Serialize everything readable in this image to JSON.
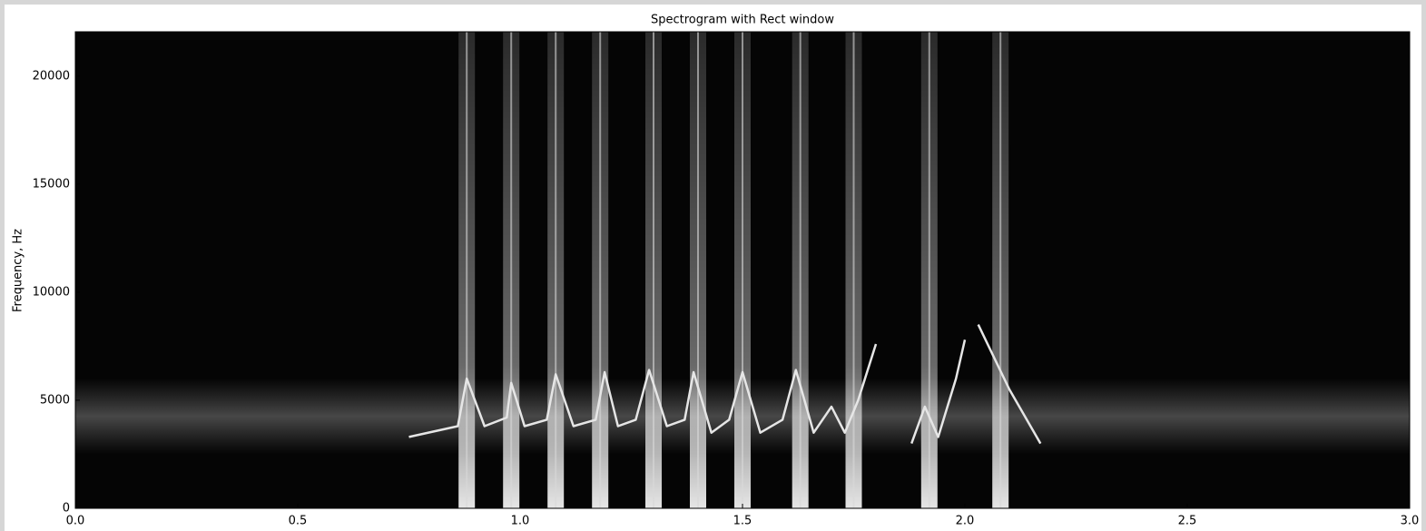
{
  "chart_data": {
    "type": "spectrogram",
    "title": "Spectrogram with Rect window",
    "ylabel": "Frequency, Hz",
    "xlim": [
      0,
      3
    ],
    "ylim": [
      0,
      22050
    ],
    "xticks": [
      {
        "value": 0,
        "label": "0.0"
      },
      {
        "value": 0.5,
        "label": "0.5"
      },
      {
        "value": 1,
        "label": "1.0"
      },
      {
        "value": 1.5,
        "label": "1.5"
      },
      {
        "value": 2,
        "label": "2.0"
      },
      {
        "value": 2.5,
        "label": "2.5"
      },
      {
        "value": 3,
        "label": "3.0"
      }
    ],
    "yticks": [
      0,
      5000,
      10000,
      15000,
      20000
    ],
    "background": "#050505",
    "streak_color": "#d8d8d8",
    "streaks": [
      0.88,
      0.98,
      1.08,
      1.18,
      1.3,
      1.4,
      1.5,
      1.63,
      1.75,
      1.92,
      2.08
    ],
    "ridge": {
      "color": "#e6e6e6",
      "x": [
        0.75,
        0.86,
        0.88,
        0.92,
        0.97,
        0.98,
        1.01,
        1.06,
        1.08,
        1.12,
        1.17,
        1.19,
        1.22,
        1.26,
        1.29,
        1.33,
        1.37,
        1.39,
        1.43,
        1.47,
        1.5,
        1.54,
        1.59,
        1.62,
        1.66,
        1.7,
        1.73,
        1.76,
        1.8,
        1.84,
        1.88,
        1.91,
        1.94,
        1.98,
        2.0,
        2.02,
        2.03,
        2.1,
        2.17
      ],
      "values": [
        3300,
        3800,
        6000,
        3800,
        4200,
        5800,
        3800,
        4100,
        6200,
        3800,
        4100,
        6300,
        3800,
        4100,
        6400,
        3800,
        4100,
        6300,
        3500,
        4100,
        6300,
        3500,
        4100,
        6400,
        3500,
        4700,
        3500,
        5000,
        7600,
        null,
        3000,
        4700,
        3300,
        6000,
        7800,
        null,
        8500,
        5500,
        3000
      ]
    }
  }
}
